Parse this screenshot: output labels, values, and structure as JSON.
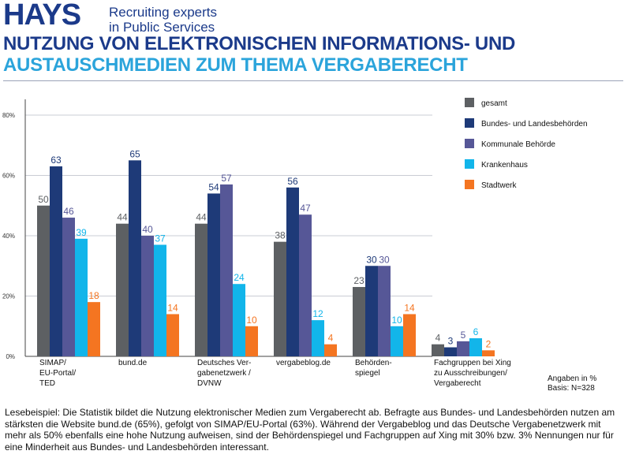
{
  "header": {
    "logo_word": "HAYS",
    "logo_tagline_1": "Recruiting experts",
    "logo_tagline_2": "in Public Services",
    "title_line1": "NUTZUNG VON ELEKTRONISCHEN INFORMATIONS- UND",
    "title_line2": "AUSTAUSCHMEDIEN ZUM THEMA VERGABERECHT"
  },
  "colors": {
    "brand_blue": "#1b3a8a",
    "title_cyan": "#2ba4db"
  },
  "chart_data": {
    "type": "bar",
    "categories": [
      [
        "SIMAP/",
        "EU-Portal/",
        "TED"
      ],
      [
        "bund.de"
      ],
      [
        "Deutsches Ver-",
        "gabenetzwerk /",
        "DVNW"
      ],
      [
        "vergabeblog.de"
      ],
      [
        "Behörden-",
        "spiegel"
      ],
      [
        "Fachgruppen bei Xing",
        "zu Ausschreibungen/",
        "Vergaberecht"
      ]
    ],
    "series": [
      {
        "name": "gesamt",
        "color": "#5d6063",
        "values": [
          50,
          44,
          44,
          38,
          23,
          4
        ]
      },
      {
        "name": "Bundes- und Landesbehörden",
        "color": "#1e3a78",
        "values": [
          63,
          65,
          54,
          56,
          30,
          3
        ]
      },
      {
        "name": "Kommunale Behörde",
        "color": "#565797",
        "values": [
          46,
          40,
          57,
          47,
          30,
          5
        ]
      },
      {
        "name": "Krankenhaus",
        "color": "#12b5ea",
        "values": [
          39,
          37,
          24,
          12,
          10,
          6
        ]
      },
      {
        "name": "Stadtwerk",
        "color": "#f47521",
        "values": [
          18,
          14,
          10,
          4,
          14,
          2
        ]
      }
    ],
    "yticks": [
      "0%",
      "20%",
      "40%",
      "60%",
      "80%"
    ],
    "ylim": [
      0,
      80
    ],
    "grid": true,
    "legend": "top-right"
  },
  "footnote": {
    "line1": "Angaben in %",
    "line2": "Basis: N=328"
  },
  "caption": "Lesebeispiel: Die Statistik bildet die Nutzung elektronischer Medien zum Vergaberecht ab. Befragte aus Bundes- und Landesbehörden nutzen am stärksten die Website bund.de (65%), gefolgt von SIMAP/EU-Portal (63%). Während der Vergabeblog und das Deutsche Vergabenetzwerk mit mehr als 50% ebenfalls eine hohe Nutzung aufweisen, sind der Behördenspiegel und Fachgruppen auf Xing mit 30% bzw. 3% Nennungen nur für eine Minderheit aus Bundes- und Landesbehörden interessant."
}
